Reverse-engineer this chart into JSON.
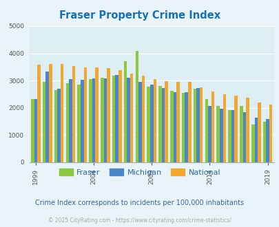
{
  "title": "Fraser Property Crime Index",
  "title_color": "#1a6faf",
  "years": [
    1999,
    2000,
    2001,
    2002,
    2003,
    2004,
    2005,
    2006,
    2007,
    2008,
    2009,
    2010,
    2011,
    2012,
    2013,
    2014,
    2015,
    2016,
    2017,
    2018,
    2019
  ],
  "fraser": [
    2330,
    2950,
    2650,
    2900,
    2850,
    3050,
    3100,
    3180,
    3700,
    4100,
    2780,
    2800,
    2620,
    2560,
    2700,
    2320,
    2060,
    1930,
    2070,
    1380,
    1500
  ],
  "michigan": [
    2330,
    3340,
    2700,
    3060,
    3030,
    3070,
    3070,
    3200,
    3110,
    2960,
    2840,
    2720,
    2580,
    2570,
    2730,
    2080,
    1960,
    1920,
    1840,
    1640,
    1580
  ],
  "national": [
    3580,
    3620,
    3600,
    3540,
    3490,
    3490,
    3450,
    3380,
    3250,
    3190,
    3050,
    2980,
    2960,
    2950,
    2760,
    2600,
    2500,
    2460,
    2370,
    2200,
    2120
  ],
  "fraser_color": "#8dc63f",
  "michigan_color": "#4a86c8",
  "national_color": "#f0a830",
  "bg_color": "#e8f4f8",
  "plot_bg_color": "#ddeef5",
  "ylim": [
    0,
    5000
  ],
  "yticks": [
    0,
    1000,
    2000,
    3000,
    4000,
    5000
  ],
  "xlabel_ticks": [
    1999,
    2004,
    2009,
    2014,
    2019
  ],
  "subtitle": "Crime Index corresponds to incidents per 100,000 inhabitants",
  "subtitle_color": "#336699",
  "footnote": "© 2025 CityRating.com - https://www.cityrating.com/crime-statistics/",
  "footnote_color": "#aaaaaa",
  "legend_labels": [
    "Fraser",
    "Michigan",
    "National"
  ]
}
